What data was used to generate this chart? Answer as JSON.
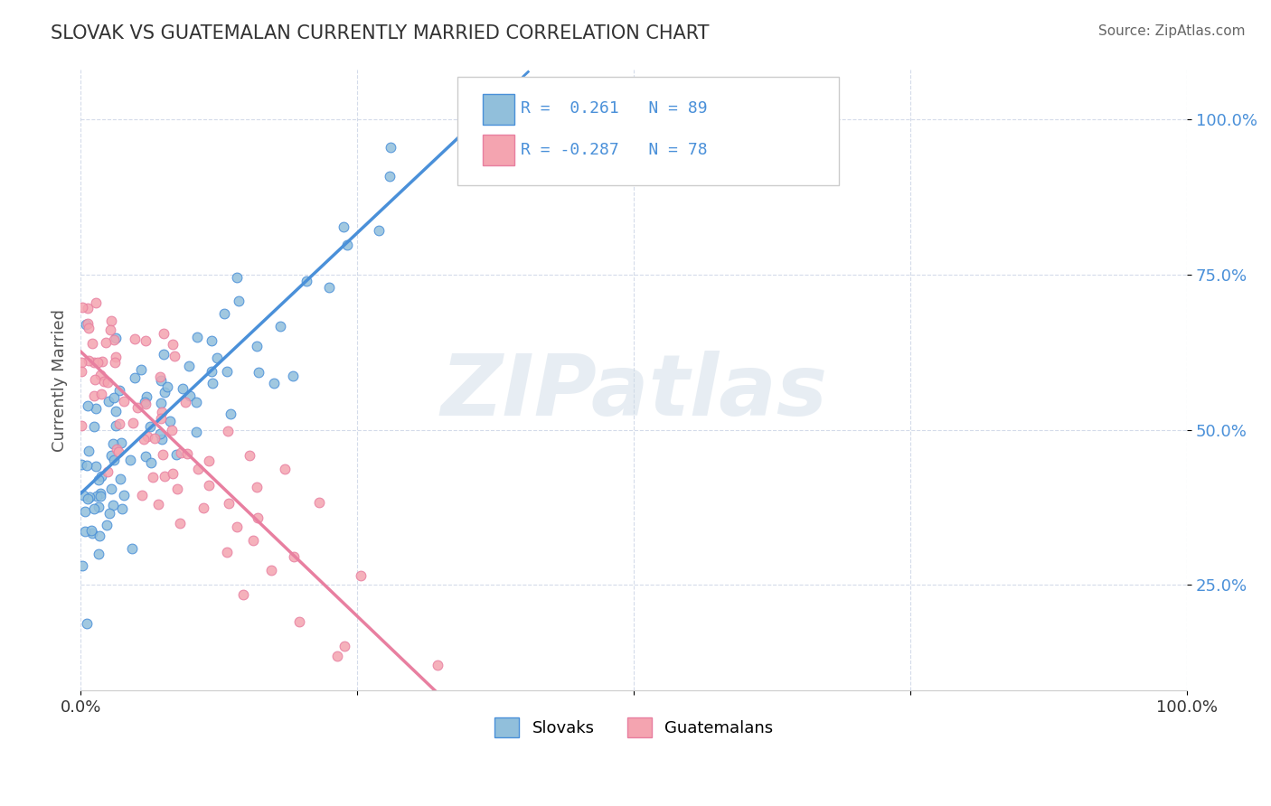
{
  "title": "SLOVAK VS GUATEMALAN CURRENTLY MARRIED CORRELATION CHART",
  "source": "Source: ZipAtlas.com",
  "xlabel": "",
  "ylabel": "Currently Married",
  "xlim": [
    0,
    1.0
  ],
  "ylim": [
    0.1,
    1.05
  ],
  "yticks": [
    0.25,
    0.5,
    0.75,
    1.0
  ],
  "ytick_labels": [
    "25.0%",
    "50.0%",
    "75.0%",
    "100.0%"
  ],
  "xticks": [
    0,
    0.25,
    0.5,
    0.75,
    1.0
  ],
  "xtick_labels": [
    "0.0%",
    "",
    "",
    "",
    "100.0%"
  ],
  "r_slovak": 0.261,
  "n_slovak": 89,
  "r_guatemalan": -0.287,
  "n_guatemalan": 78,
  "color_slovak": "#91bfdb",
  "color_guatemalan": "#f4a4b0",
  "color_slovak_line": "#4a90d9",
  "color_guatemalan_line": "#e87fa0",
  "legend_label_slovak": "Slovaks",
  "legend_label_guatemalan": "Guatemalans",
  "background_color": "#ffffff",
  "grid_color": "#d0d8e8",
  "watermark": "ZIPatlas",
  "watermark_color": "#d0dce8"
}
